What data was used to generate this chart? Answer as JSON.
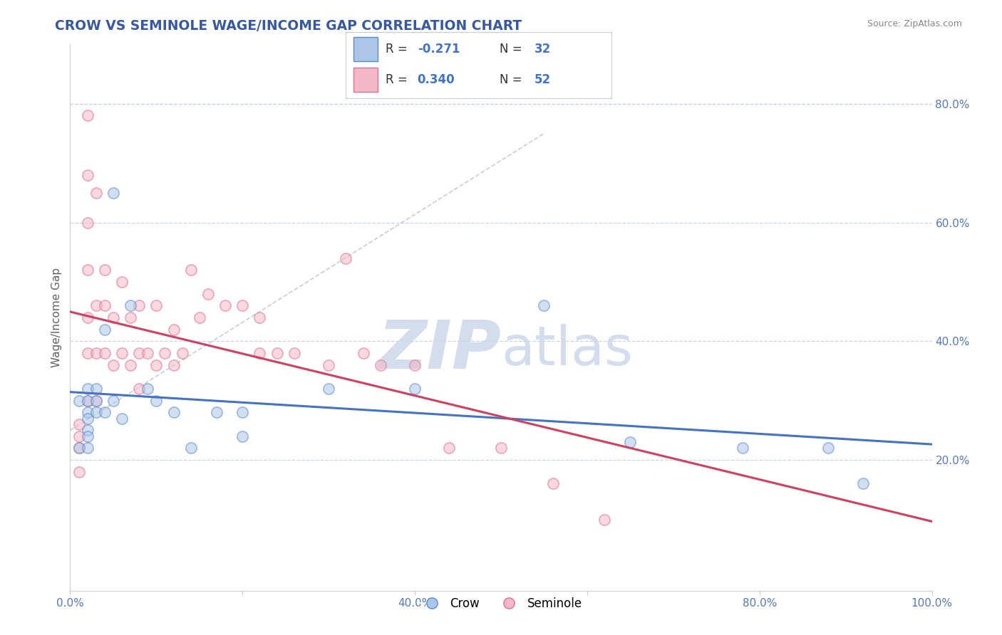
{
  "title": "CROW VS SEMINOLE WAGE/INCOME GAP CORRELATION CHART",
  "source": "Source: ZipAtlas.com",
  "ylabel": "Wage/Income Gap",
  "xlim": [
    0.0,
    1.0
  ],
  "ylim": [
    -0.02,
    0.9
  ],
  "xticks": [
    0.0,
    0.2,
    0.4,
    0.6,
    0.8,
    1.0
  ],
  "xticklabels": [
    "0.0%",
    "",
    "40.0%",
    "",
    "80.0%",
    "100.0%"
  ],
  "yticks_right": [
    0.2,
    0.4,
    0.6,
    0.8
  ],
  "yticklabels_right": [
    "20.0%",
    "40.0%",
    "60.0%",
    "80.0%"
  ],
  "crow_color": "#adc6e8",
  "seminole_color": "#f5b8c8",
  "crow_edge_color": "#5b8cc8",
  "seminole_edge_color": "#e07090",
  "crow_line_color": "#4472c4",
  "seminole_line_color": "#d04060",
  "R_crow": -0.271,
  "N_crow": 32,
  "R_seminole": 0.34,
  "N_seminole": 52,
  "watermark_zip": "ZIP",
  "watermark_atlas": "atlas",
  "crow_x": [
    0.01,
    0.01,
    0.02,
    0.02,
    0.02,
    0.02,
    0.02,
    0.02,
    0.02,
    0.03,
    0.03,
    0.03,
    0.04,
    0.04,
    0.05,
    0.05,
    0.06,
    0.07,
    0.09,
    0.1,
    0.12,
    0.14,
    0.17,
    0.2,
    0.2,
    0.3,
    0.4,
    0.55,
    0.65,
    0.78,
    0.88,
    0.92
  ],
  "crow_y": [
    0.3,
    0.22,
    0.32,
    0.3,
    0.28,
    0.27,
    0.25,
    0.24,
    0.22,
    0.32,
    0.3,
    0.28,
    0.42,
    0.28,
    0.65,
    0.3,
    0.27,
    0.46,
    0.32,
    0.3,
    0.28,
    0.22,
    0.28,
    0.28,
    0.24,
    0.32,
    0.32,
    0.46,
    0.23,
    0.22,
    0.22,
    0.16
  ],
  "seminole_x": [
    0.01,
    0.01,
    0.01,
    0.01,
    0.02,
    0.02,
    0.02,
    0.02,
    0.02,
    0.02,
    0.02,
    0.03,
    0.03,
    0.03,
    0.03,
    0.04,
    0.04,
    0.04,
    0.05,
    0.05,
    0.06,
    0.06,
    0.07,
    0.07,
    0.08,
    0.08,
    0.08,
    0.09,
    0.1,
    0.1,
    0.11,
    0.12,
    0.12,
    0.13,
    0.14,
    0.15,
    0.16,
    0.18,
    0.2,
    0.22,
    0.22,
    0.24,
    0.26,
    0.3,
    0.32,
    0.34,
    0.36,
    0.4,
    0.44,
    0.5,
    0.56,
    0.62
  ],
  "seminole_y": [
    0.26,
    0.24,
    0.22,
    0.18,
    0.78,
    0.68,
    0.6,
    0.52,
    0.44,
    0.38,
    0.3,
    0.65,
    0.46,
    0.38,
    0.3,
    0.52,
    0.46,
    0.38,
    0.44,
    0.36,
    0.5,
    0.38,
    0.44,
    0.36,
    0.46,
    0.38,
    0.32,
    0.38,
    0.46,
    0.36,
    0.38,
    0.42,
    0.36,
    0.38,
    0.52,
    0.44,
    0.48,
    0.46,
    0.46,
    0.44,
    0.38,
    0.38,
    0.38,
    0.36,
    0.54,
    0.38,
    0.36,
    0.36,
    0.22,
    0.22,
    0.16,
    0.1
  ],
  "background_color": "#ffffff",
  "grid_color": "#c8d4e8",
  "title_color": "#3858a0",
  "source_color": "#888888",
  "axis_label_color": "#606060",
  "tick_color": "#5878b8",
  "watermark_color": "#ccd8ea",
  "marker_size": 11,
  "marker_alpha": 0.55
}
